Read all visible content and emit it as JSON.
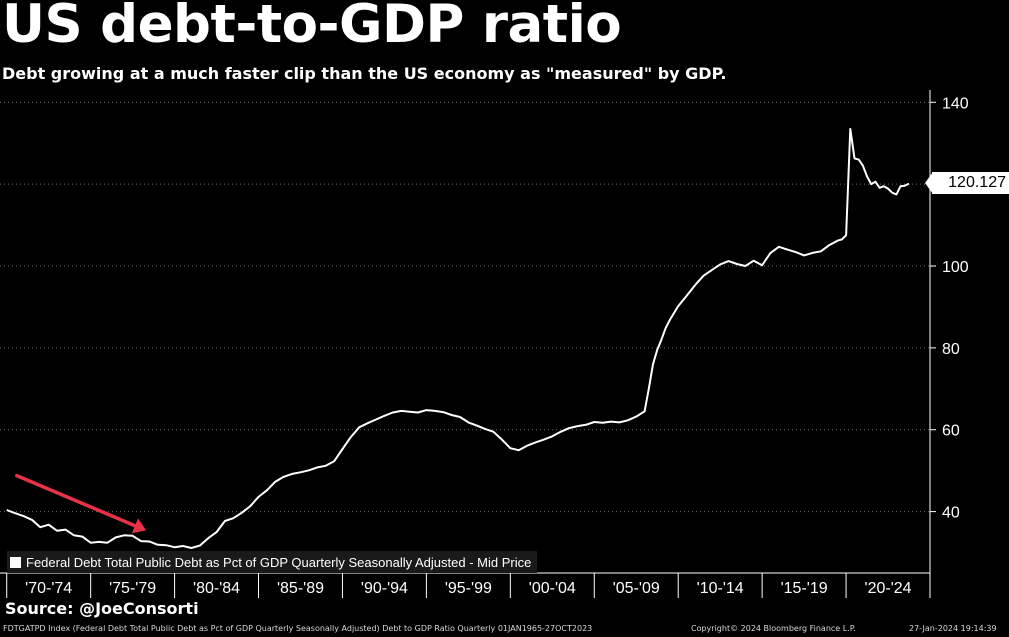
{
  "title": "US debt-to-GDP ratio",
  "subtitle": "Debt growing at a much faster clip than the US economy as \"measured\" by GDP.",
  "source": "Source: @JoeConsorti",
  "footer": {
    "index_description": "FDTGATPD Index (Federal Debt Total Public Debt as Pct of GDP Quarterly Seasonally Adjusted) Debt to GDP Ratio  Quarterly 01JAN1965-27OCT2023",
    "copyright": "Copyright© 2024 Bloomberg Finance L.P.",
    "timestamp": "27-Jan-2024 19:14:39"
  },
  "legend": {
    "label": "Federal Debt Total Public Debt as Pct of GDP Quarterly Seasonally Adjusted - Mid Price"
  },
  "last_value_label": "120.127",
  "colors": {
    "background": "#000000",
    "line": "#ffffff",
    "arrow": "#e8324a",
    "axis_panel": "#000000"
  },
  "chart_data": {
    "type": "line",
    "series": [
      {
        "name": "Federal Debt Total Public Debt as Pct of GDP Quarterly Seasonally Adjusted - Mid Price",
        "x": [
          1970.0,
          1970.5,
          1971.0,
          1971.5,
          1972.0,
          1972.5,
          1973.0,
          1973.5,
          1974.0,
          1974.5,
          1975.0,
          1975.5,
          1976.0,
          1976.5,
          1977.0,
          1977.5,
          1978.0,
          1978.5,
          1979.0,
          1979.5,
          1980.0,
          1980.5,
          1981.0,
          1981.5,
          1982.0,
          1982.5,
          1983.0,
          1983.5,
          1984.0,
          1984.5,
          1985.0,
          1985.5,
          1986.0,
          1986.5,
          1987.0,
          1987.5,
          1988.0,
          1988.5,
          1989.0,
          1989.5,
          1990.0,
          1990.5,
          1991.0,
          1991.5,
          1992.0,
          1992.5,
          1993.0,
          1993.5,
          1994.0,
          1994.5,
          1995.0,
          1995.5,
          1996.0,
          1996.5,
          1997.0,
          1997.5,
          1998.0,
          1998.5,
          1999.0,
          1999.5,
          2000.0,
          2000.5,
          2001.0,
          2001.5,
          2002.0,
          2002.5,
          2003.0,
          2003.5,
          2004.0,
          2004.5,
          2005.0,
          2005.5,
          2006.0,
          2006.5,
          2007.0,
          2007.5,
          2008.0,
          2008.25,
          2008.5,
          2008.75,
          2009.0,
          2009.25,
          2009.5,
          2010.0,
          2010.5,
          2011.0,
          2011.5,
          2012.0,
          2012.5,
          2013.0,
          2013.5,
          2014.0,
          2014.5,
          2015.0,
          2015.5,
          2016.0,
          2016.5,
          2017.0,
          2017.5,
          2018.0,
          2018.5,
          2019.0,
          2019.5,
          2019.75,
          2020.0,
          2020.25,
          2020.5,
          2020.75,
          2021.0,
          2021.25,
          2021.5,
          2021.75,
          2022.0,
          2022.25,
          2022.5,
          2022.75,
          2023.0,
          2023.25,
          2023.5,
          2023.75
        ],
        "values": [
          40.4,
          39.6,
          38.9,
          38.0,
          36.2,
          36.8,
          35.3,
          35.6,
          34.2,
          33.9,
          32.4,
          32.6,
          32.4,
          33.7,
          34.2,
          34.1,
          32.8,
          32.7,
          31.9,
          31.8,
          31.3,
          31.6,
          31.1,
          31.7,
          33.5,
          35.0,
          37.7,
          38.4,
          39.7,
          41.3,
          43.6,
          45.2,
          47.3,
          48.5,
          49.2,
          49.6,
          50.1,
          50.8,
          51.2,
          52.3,
          55.3,
          58.2,
          60.6,
          61.6,
          62.5,
          63.4,
          64.2,
          64.6,
          64.4,
          64.2,
          64.8,
          64.6,
          64.3,
          63.6,
          63.1,
          61.8,
          61.0,
          60.2,
          59.5,
          57.6,
          55.5,
          55.0,
          56.1,
          56.9,
          57.6,
          58.4,
          59.5,
          60.4,
          60.9,
          61.2,
          61.9,
          61.7,
          62.0,
          61.8,
          62.3,
          63.2,
          64.5,
          70.0,
          76.0,
          79.5,
          82.0,
          84.8,
          86.8,
          90.2,
          92.7,
          95.3,
          97.6,
          99.0,
          100.4,
          101.2,
          100.5,
          100.0,
          101.3,
          100.2,
          103.2,
          104.7,
          104.0,
          103.4,
          102.6,
          103.2,
          103.6,
          105.1,
          106.2,
          106.5,
          107.5,
          133.5,
          126.3,
          126.0,
          124.5,
          121.9,
          120.0,
          120.6,
          119.1,
          119.5,
          118.9,
          117.9,
          117.5,
          119.5,
          119.6,
          120.127
        ]
      }
    ],
    "x_tick_labels": [
      "'70-'74",
      "'75-'79",
      "'80-'84",
      "'85-'89",
      "'90-'94",
      "'95-'99",
      "'00-'04",
      "'05-'09",
      "'10-'14",
      "'15-'19",
      "'20-'24"
    ],
    "x_tick_bounds": [
      1970,
      1975,
      1980,
      1985,
      1990,
      1995,
      2000,
      2005,
      2010,
      2015,
      2020,
      2025
    ],
    "xlim": [
      1969.6,
      2025.0
    ],
    "y_ticks": [
      40,
      60,
      80,
      100,
      120,
      140
    ],
    "y_tick_labels": [
      "40",
      "60",
      "80",
      "100",
      "",
      "140"
    ],
    "ylim": [
      25,
      143
    ],
    "y_axis_position": "right",
    "grid": "horizontal dotted",
    "legend_position": "bottom-left",
    "annotations": [
      {
        "type": "arrow",
        "from": [
          1970.6,
          48.8
        ],
        "to": [
          1978.3,
          35.4
        ]
      }
    ]
  }
}
